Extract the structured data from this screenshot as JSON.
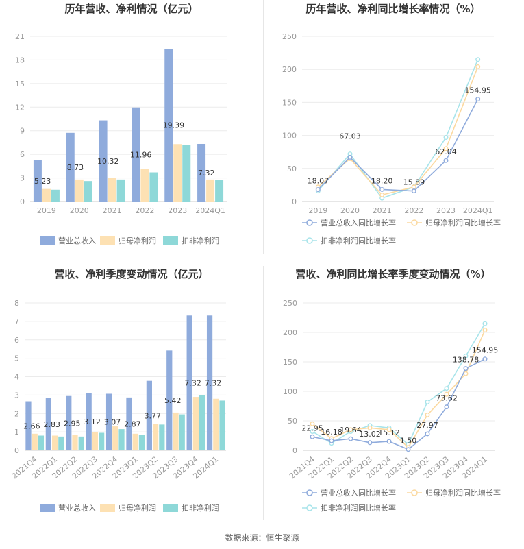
{
  "source_label": "数据来源：恒生聚源",
  "colors": {
    "revenue_bar": "#8fabdc",
    "parent_profit_bar": "#fde1b3",
    "deducted_profit_bar": "#8ed8d8",
    "revenue_line": "#8fabdc",
    "parent_line": "#fbd9a0",
    "deducted_line": "#a8e4ea",
    "grid": "#ebebeb",
    "axis_text": "#999999",
    "title": "#333333"
  },
  "chart_data": [
    {
      "type": "bar",
      "title": "历年营收、净利情况（亿元）",
      "categories": [
        "2019",
        "2020",
        "2021",
        "2022",
        "2023",
        "2024Q1"
      ],
      "series": [
        {
          "name": "营业总收入",
          "values": [
            5.23,
            8.73,
            10.32,
            11.96,
            19.39,
            7.32
          ]
        },
        {
          "name": "归母净利润",
          "values": [
            1.6,
            2.8,
            3.0,
            4.1,
            7.3,
            2.8
          ]
        },
        {
          "name": "扣非净利润",
          "values": [
            1.5,
            2.6,
            2.8,
            3.7,
            7.2,
            2.7
          ]
        }
      ],
      "data_labels": [
        "5.23",
        "8.73",
        "10.32",
        "11.96",
        "19.39",
        "7.32"
      ],
      "yticks": [
        "0",
        "3",
        "6",
        "9",
        "12",
        "15",
        "18",
        "21"
      ],
      "ylim": [
        0,
        21
      ],
      "grid": true,
      "legend_position": "bottom"
    },
    {
      "type": "line",
      "title": "历年营收、净利同比增长率情况（%）",
      "categories": [
        "2019",
        "2020",
        "2021",
        "2022",
        "2023",
        "2024Q1"
      ],
      "series": [
        {
          "name": "营业总收入同比增长率",
          "values": [
            18.07,
            67.03,
            18.2,
            15.89,
            62.04,
            154.95
          ]
        },
        {
          "name": "归母净利润同比增长率",
          "values": [
            22,
            65,
            10,
            22,
            80,
            204
          ]
        },
        {
          "name": "扣非净利润同比增长率",
          "values": [
            16,
            72,
            5,
            22,
            97,
            215
          ]
        }
      ],
      "data_labels": [
        "18.07",
        "67.03",
        "18.20",
        "15.89",
        "62.04",
        "154.95"
      ],
      "yticks": [
        "0",
        "50",
        "100",
        "150",
        "200",
        "250"
      ],
      "ylim": [
        0,
        250
      ],
      "grid": true,
      "legend_position": "bottom"
    },
    {
      "type": "bar",
      "title": "营收、净利季度变动情况（亿元）",
      "categories": [
        "2021Q4",
        "2022Q1",
        "2022Q2",
        "2022Q3",
        "2022Q4",
        "2023Q1",
        "2023Q2",
        "2023Q3",
        "2023Q4",
        "2024Q1"
      ],
      "series": [
        {
          "name": "营业总收入",
          "values": [
            2.66,
            2.83,
            2.95,
            3.12,
            3.07,
            2.87,
            3.77,
            5.42,
            7.32,
            7.32
          ]
        },
        {
          "name": "归母净利润",
          "values": [
            0.9,
            0.8,
            0.85,
            1.0,
            1.3,
            0.9,
            1.45,
            2.05,
            2.9,
            2.8
          ]
        },
        {
          "name": "扣非净利润",
          "values": [
            0.8,
            0.75,
            0.75,
            0.95,
            1.15,
            0.85,
            1.4,
            1.95,
            3.0,
            2.7
          ]
        }
      ],
      "data_labels": [
        "2.66",
        "2.83",
        "2.95",
        "3.12",
        "3.07",
        "2.87",
        "3.77",
        "5.42",
        "7.32",
        "7.32"
      ],
      "yticks": [
        "0",
        "1",
        "2",
        "3",
        "4",
        "5",
        "6",
        "7",
        "8"
      ],
      "ylim": [
        0,
        8
      ],
      "grid": true,
      "legend_position": "bottom"
    },
    {
      "type": "line",
      "title": "营收、净利同比增长率季度变动情况（%）",
      "categories": [
        "2021Q4",
        "2022Q1",
        "2022Q2",
        "2022Q3",
        "2022Q4",
        "2023Q1",
        "2023Q2",
        "2023Q3",
        "2023Q4",
        "2024Q1"
      ],
      "series": [
        {
          "name": "营业总收入同比增长率",
          "values": [
            22.95,
            16.18,
            19.64,
            13.02,
            15.12,
            1.5,
            27.97,
            73.62,
            138.78,
            154.95
          ]
        },
        {
          "name": "归母净利润同比增长率",
          "values": [
            45,
            20,
            35,
            38,
            35,
            5,
            60,
            95,
            130,
            204
          ]
        },
        {
          "name": "扣非净利润同比增长率",
          "values": [
            32,
            12,
            32,
            42,
            38,
            10,
            82,
            105,
            160,
            215
          ]
        }
      ],
      "data_labels": [
        "22.95",
        "16.18",
        "19.64",
        "13.02",
        "15.12",
        "1.50",
        "27.97",
        "73.62",
        "138.78",
        "154.95"
      ],
      "yticks": [
        "0",
        "50",
        "100",
        "150",
        "200",
        "250"
      ],
      "ylim": [
        0,
        250
      ],
      "grid": true,
      "legend_position": "bottom"
    }
  ]
}
